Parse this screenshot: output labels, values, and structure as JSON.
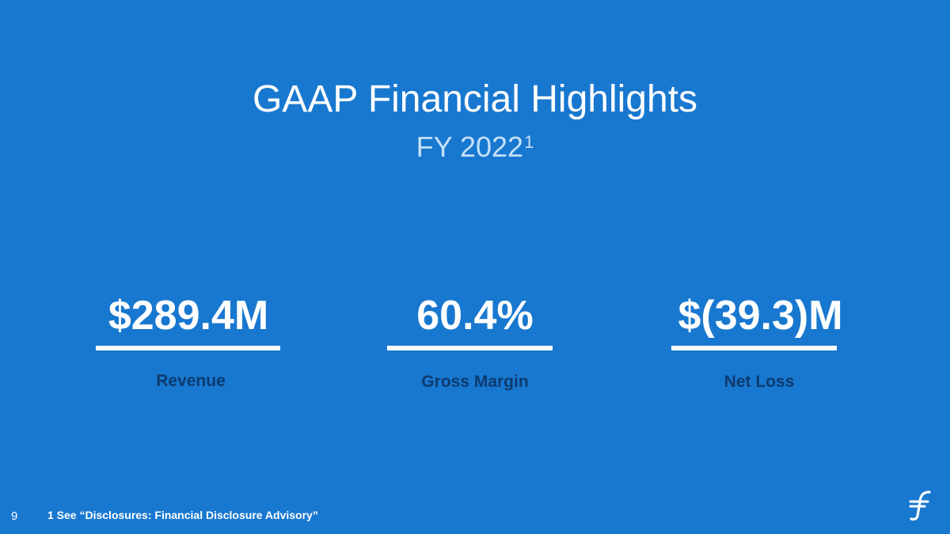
{
  "slide": {
    "title": "GAAP Financial Highlights",
    "subtitle": "FY 2022",
    "subtitle_footnote_marker": "1",
    "metrics": [
      {
        "value": "$289.4M",
        "label": "Revenue"
      },
      {
        "value": "60.4%",
        "label": "Gross Margin"
      },
      {
        "value": "$(39.3)M",
        "label": "Net Loss"
      }
    ],
    "footer": {
      "page_number": "9",
      "note": "1 See “Disclosures: Financial Disclosure Advisory”"
    },
    "logo_icon": "brand-logo-icon",
    "colors": {
      "background": "#1878d0",
      "title": "#ffffff",
      "subtitle": "#c3e0f7",
      "label": "#0d3a6e"
    }
  }
}
